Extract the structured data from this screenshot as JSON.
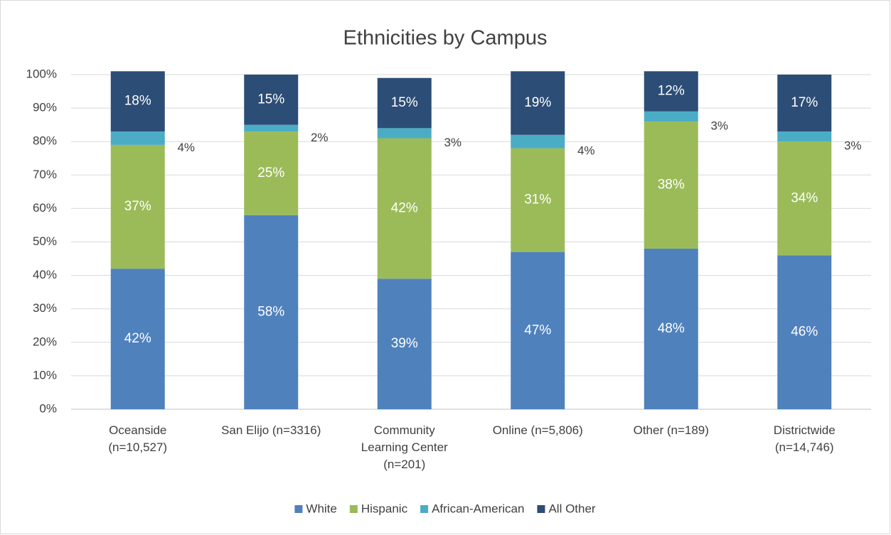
{
  "chart_data": {
    "type": "stacked_bar",
    "title": "Ethnicities by Campus",
    "categories": [
      "Oceanside\n(n=10,527)",
      "San Elijo (n=3316)",
      "Community\nLearning Center\n(n=201)",
      "Online (n=5,806)",
      "Other (n=189)",
      "Districtwide\n(n=14,746)"
    ],
    "series": [
      {
        "name": "White",
        "color": "#4f81bd",
        "values": [
          42,
          58,
          39,
          47,
          48,
          46
        ],
        "value_labels": [
          "42%",
          "58%",
          "39%",
          "47%",
          "48%",
          "46%"
        ]
      },
      {
        "name": "Hispanic",
        "color": "#9bbb59",
        "values": [
          37,
          25,
          42,
          31,
          38,
          34
        ],
        "value_labels": [
          "37%",
          "25%",
          "42%",
          "31%",
          "38%",
          "34%"
        ]
      },
      {
        "name": "African-American",
        "color": "#4bacc6",
        "values": [
          4,
          2,
          3,
          4,
          3,
          3
        ],
        "value_labels": [
          "4%",
          "2%",
          "3%",
          "4%",
          "3%",
          "3%"
        ]
      },
      {
        "name": "All Other",
        "color": "#2c4d75",
        "values": [
          18,
          15,
          15,
          19,
          12,
          17
        ],
        "value_labels": [
          "18%",
          "15%",
          "15%",
          "19%",
          "12%",
          "17%"
        ]
      }
    ],
    "ylim": [
      0,
      100
    ],
    "yticks": [
      {
        "value": 0,
        "label": "0%"
      },
      {
        "value": 10,
        "label": "10%"
      },
      {
        "value": 20,
        "label": "20%"
      },
      {
        "value": 30,
        "label": "30%"
      },
      {
        "value": 40,
        "label": "40%"
      },
      {
        "value": 50,
        "label": "50%"
      },
      {
        "value": 60,
        "label": "60%"
      },
      {
        "value": 70,
        "label": "70%"
      },
      {
        "value": 80,
        "label": "80%"
      },
      {
        "value": 90,
        "label": "90%"
      },
      {
        "value": 100,
        "label": "100%"
      }
    ],
    "grid": true,
    "legend": "bottom"
  }
}
